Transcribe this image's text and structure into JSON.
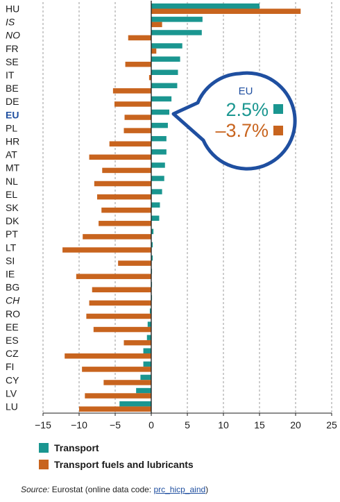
{
  "chart_data": {
    "type": "bar",
    "orientation": "horizontal",
    "categories": [
      "HU",
      "IS",
      "NO",
      "FR",
      "SE",
      "IT",
      "BE",
      "DE",
      "EU",
      "PL",
      "HR",
      "AT",
      "MT",
      "NL",
      "EL",
      "SK",
      "DK",
      "PT",
      "LT",
      "SI",
      "IE",
      "BG",
      "CH",
      "RO",
      "EE",
      "ES",
      "CZ",
      "FI",
      "CY",
      "LV",
      "LU"
    ],
    "italic_categories": [
      "IS",
      "NO",
      "CH"
    ],
    "highlight_category": "EU",
    "series": [
      {
        "name": "Transport",
        "color": "#1a9690",
        "values": [
          15.0,
          7.1,
          7.0,
          4.3,
          4.0,
          3.7,
          3.6,
          2.8,
          2.5,
          2.3,
          2.1,
          2.1,
          1.9,
          1.8,
          1.5,
          1.2,
          1.1,
          0.3,
          0.2,
          0.2,
          0.1,
          0.1,
          0.1,
          -0.2,
          -0.5,
          -0.6,
          -1.1,
          -1.1,
          -1.5,
          -2.1,
          -4.4
        ]
      },
      {
        "name": "Transport fuels and lubricants",
        "color": "#c8641e",
        "values": [
          20.7,
          1.5,
          -3.2,
          0.7,
          -3.6,
          -0.3,
          -5.3,
          -5.1,
          -3.7,
          -3.8,
          -5.8,
          -8.6,
          -6.8,
          -7.9,
          -7.5,
          -6.9,
          -7.3,
          -9.5,
          -12.3,
          -4.6,
          -10.4,
          -8.2,
          -8.6,
          -9.0,
          -8.0,
          -3.8,
          -12.0,
          -9.6,
          -6.6,
          -9.2,
          -10.0
        ]
      }
    ],
    "xlim": [
      -15,
      25
    ],
    "xticks": [
      -15,
      -10,
      -5,
      0,
      5,
      10,
      15,
      20,
      25
    ],
    "grid": "vertical dashed",
    "legend_position": "bottom-left"
  },
  "callout": {
    "label": "EU",
    "transport_value": "2.5%",
    "fuels_value": "–3.7%"
  },
  "legend": {
    "transport": "Transport",
    "fuels": "Transport fuels and lubricants"
  },
  "source": {
    "prefix": "Source:",
    "text": " Eurostat (online data code: ",
    "code": "prc_hicp_aind",
    "suffix": ")"
  }
}
